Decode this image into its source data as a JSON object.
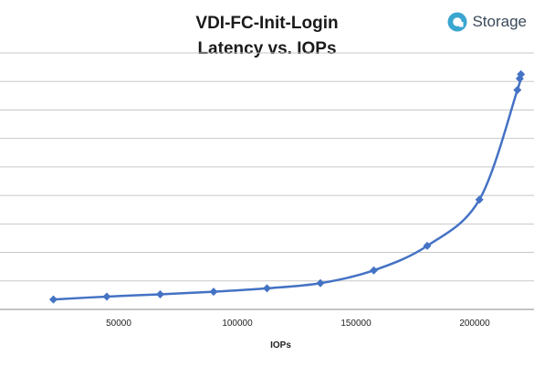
{
  "brand": {
    "name": "Storage",
    "color": "#3aa6d0"
  },
  "chart_data": {
    "type": "scatter",
    "title_lines": [
      "VDI-FC-Init-Login",
      "Latency vs. IOPs"
    ],
    "xlabel": "IOPs",
    "ylabel": "",
    "xlim": [
      0,
      225000
    ],
    "ylim": [
      0,
      9
    ],
    "grid": true,
    "line_color": "#4472c4",
    "x_ticks": [
      50000,
      100000,
      150000,
      200000
    ],
    "x_tick_labels": [
      "50000",
      "100000",
      "150000",
      "200000"
    ],
    "y_gridlines": [
      0,
      1,
      2,
      3,
      4,
      5,
      6,
      7,
      8,
      9
    ],
    "series": [
      {
        "x": [
          22500,
          45000,
          67500,
          90000,
          112500,
          135000,
          157500,
          180000,
          202000,
          218000,
          219000,
          219500
        ],
        "y": [
          0.35,
          0.45,
          0.53,
          0.62,
          0.74,
          0.92,
          1.37,
          2.23,
          3.85,
          7.7,
          8.1,
          8.25
        ]
      }
    ]
  }
}
